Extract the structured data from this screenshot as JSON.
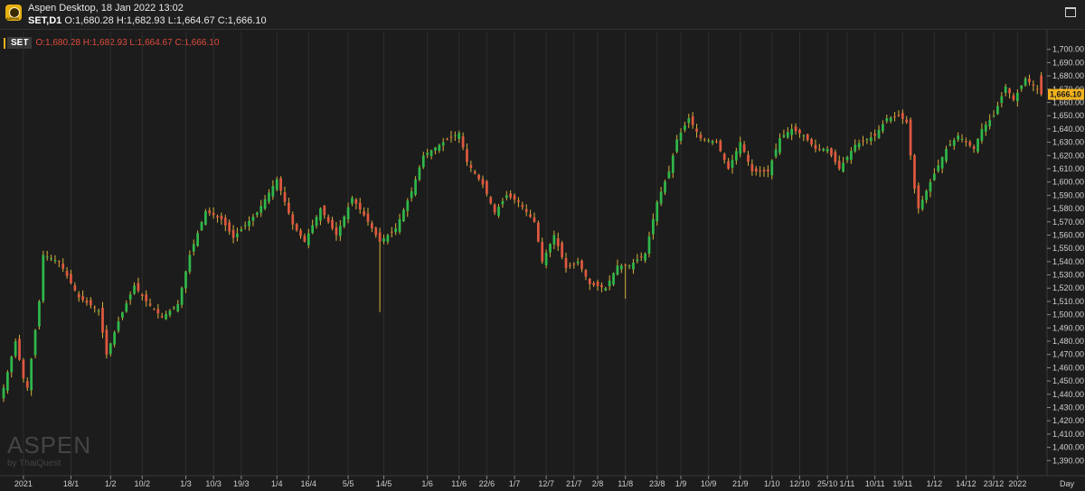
{
  "window": {
    "logo_text": "ASPEN",
    "title": "Aspen Desktop, 18 Jan 2022 13:02",
    "symbol_tf": "SET,D1",
    "ohlc": "O:1,680.28 H:1,682.93 L:1,664.67 C:1,666.10"
  },
  "legend": {
    "symbol": "SET",
    "values": "O:1,680.28 H:1,682.93 L:1,664.67 C:1,666.10"
  },
  "watermark": {
    "main": "ASPEN",
    "sub": "by ThaiQuest"
  },
  "colors": {
    "background": "#1c1c1c",
    "up": "#2fb84a",
    "down": "#e05840",
    "wick": "#d7b13b",
    "grid": "#2d2d2d",
    "last_price_bg": "#f0b21e"
  },
  "chart_data": {
    "type": "candlestick",
    "symbol": "SET",
    "timeframe": "D1",
    "ylim": [
      1380,
      1710
    ],
    "y_ticks": [
      1390,
      1400,
      1410,
      1420,
      1430,
      1440,
      1450,
      1460,
      1470,
      1480,
      1490,
      1500,
      1510,
      1520,
      1530,
      1540,
      1550,
      1560,
      1570,
      1580,
      1590,
      1600,
      1610,
      1620,
      1630,
      1640,
      1650,
      1660,
      1670,
      1680,
      1690,
      1700
    ],
    "y_tick_labels": [
      "1,390.00",
      "1,400.00",
      "1,410.00",
      "1,420.00",
      "1,430.00",
      "1,440.00",
      "1,450.00",
      "1,460.00",
      "1,470.00",
      "1,480.00",
      "1,490.00",
      "1,500.00",
      "1,510.00",
      "1,520.00",
      "1,530.00",
      "1,540.00",
      "1,550.00",
      "1,560.00",
      "1,570.00",
      "1,580.00",
      "1,590.00",
      "1,600.00",
      "1,610.00",
      "1,620.00",
      "1,630.00",
      "1,640.00",
      "1,650.00",
      "1,660.00",
      "1,670.00",
      "1,680.00",
      "1,690.00",
      "1,700.00"
    ],
    "x_labels": [
      {
        "label": "2021",
        "bar": 5
      },
      {
        "label": "18/1",
        "bar": 17
      },
      {
        "label": "1/2",
        "bar": 27
      },
      {
        "label": "10/2",
        "bar": 35
      },
      {
        "label": "1/3",
        "bar": 46
      },
      {
        "label": "10/3",
        "bar": 53
      },
      {
        "label": "19/3",
        "bar": 60
      },
      {
        "label": "1/4",
        "bar": 69
      },
      {
        "label": "16/4",
        "bar": 77
      },
      {
        "label": "5/5",
        "bar": 87
      },
      {
        "label": "14/5",
        "bar": 96
      },
      {
        "label": "1/6",
        "bar": 107
      },
      {
        "label": "11/6",
        "bar": 115
      },
      {
        "label": "22/6",
        "bar": 122
      },
      {
        "label": "1/7",
        "bar": 129
      },
      {
        "label": "12/7",
        "bar": 137
      },
      {
        "label": "21/7",
        "bar": 144
      },
      {
        "label": "2/8",
        "bar": 150
      },
      {
        "label": "11/8",
        "bar": 157
      },
      {
        "label": "23/8",
        "bar": 165
      },
      {
        "label": "1/9",
        "bar": 171
      },
      {
        "label": "10/9",
        "bar": 178
      },
      {
        "label": "21/9",
        "bar": 186
      },
      {
        "label": "1/10",
        "bar": 194
      },
      {
        "label": "12/10",
        "bar": 201
      },
      {
        "label": "25/10",
        "bar": 208
      },
      {
        "label": "1/11",
        "bar": 213
      },
      {
        "label": "10/11",
        "bar": 220
      },
      {
        "label": "19/11",
        "bar": 227
      },
      {
        "label": "1/12",
        "bar": 235
      },
      {
        "label": "14/12",
        "bar": 243
      },
      {
        "label": "23/12",
        "bar": 250
      },
      {
        "label": "2022",
        "bar": 256
      }
    ],
    "x_unit_label": "Day",
    "last_price": 1666.1,
    "last_price_label": "1,666.10",
    "anchors": [
      [
        0,
        1445
      ],
      [
        3,
        1480
      ],
      [
        5,
        1452
      ],
      [
        6,
        1445
      ],
      [
        9,
        1510
      ],
      [
        10,
        1545
      ],
      [
        14,
        1540
      ],
      [
        19,
        1513
      ],
      [
        24,
        1503
      ],
      [
        26,
        1470
      ],
      [
        29,
        1495
      ],
      [
        33,
        1522
      ],
      [
        36,
        1510
      ],
      [
        40,
        1498
      ],
      [
        44,
        1508
      ],
      [
        47,
        1545
      ],
      [
        51,
        1578
      ],
      [
        55,
        1572
      ],
      [
        58,
        1558
      ],
      [
        64,
        1577
      ],
      [
        69,
        1602
      ],
      [
        73,
        1568
      ],
      [
        76,
        1555
      ],
      [
        80,
        1580
      ],
      [
        84,
        1560
      ],
      [
        88,
        1588
      ],
      [
        91,
        1575
      ],
      [
        95,
        1555
      ],
      [
        99,
        1565
      ],
      [
        103,
        1593
      ],
      [
        106,
        1620
      ],
      [
        112,
        1632
      ],
      [
        115,
        1637
      ],
      [
        117,
        1615
      ],
      [
        121,
        1598
      ],
      [
        124,
        1577
      ],
      [
        127,
        1590
      ],
      [
        130,
        1585
      ],
      [
        134,
        1570
      ],
      [
        136,
        1540
      ],
      [
        139,
        1560
      ],
      [
        142,
        1535
      ],
      [
        145,
        1540
      ],
      [
        148,
        1523
      ],
      [
        152,
        1520
      ],
      [
        155,
        1537
      ],
      [
        158,
        1537
      ],
      [
        162,
        1546
      ],
      [
        165,
        1585
      ],
      [
        168,
        1608
      ],
      [
        170,
        1632
      ],
      [
        173,
        1648
      ],
      [
        176,
        1633
      ],
      [
        180,
        1630
      ],
      [
        183,
        1610
      ],
      [
        186,
        1630
      ],
      [
        189,
        1608
      ],
      [
        193,
        1608
      ],
      [
        196,
        1633
      ],
      [
        199,
        1640
      ],
      [
        202,
        1635
      ],
      [
        205,
        1625
      ],
      [
        208,
        1625
      ],
      [
        211,
        1610
      ],
      [
        215,
        1628
      ],
      [
        220,
        1635
      ],
      [
        223,
        1648
      ],
      [
        226,
        1650
      ],
      [
        228,
        1645
      ],
      [
        230,
        1595
      ],
      [
        231,
        1580
      ],
      [
        234,
        1600
      ],
      [
        238,
        1625
      ],
      [
        241,
        1635
      ],
      [
        245,
        1625
      ],
      [
        247,
        1640
      ],
      [
        250,
        1650
      ],
      [
        253,
        1672
      ],
      [
        255,
        1662
      ],
      [
        258,
        1678
      ],
      [
        261,
        1670
      ],
      [
        262,
        1666.1
      ]
    ],
    "series_note": "close values interpolated from anchors; OHLC candles generated per bar"
  }
}
